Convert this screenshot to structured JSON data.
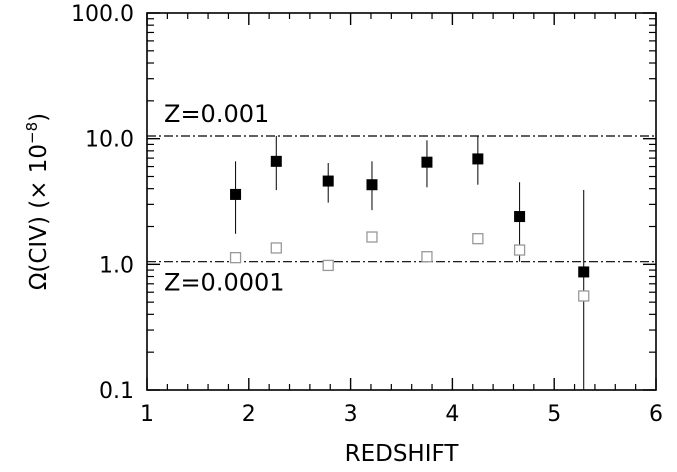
{
  "chart_data": {
    "type": "scatter",
    "xlabel": "REDSHIFT",
    "ylabel_main": "Ω(CIV)  (× 10",
    "ylabel_exp": "−8",
    "ylabel_close": ")",
    "xlim": [
      1,
      6
    ],
    "ylim": [
      0.1,
      100
    ],
    "y_scale": "log",
    "grid": false,
    "x_ticks": [
      1,
      2,
      3,
      4,
      5,
      6
    ],
    "x_tick_labels": [
      "1",
      "2",
      "3",
      "4",
      "5",
      "6"
    ],
    "y_ticks": [
      0.1,
      1,
      10,
      100
    ],
    "y_tick_labels": [
      "0.1",
      "1.0",
      "10.0",
      "100.0"
    ],
    "reference_lines": [
      {
        "label": "Z=0.001",
        "y": 10.5
      },
      {
        "label": "Z=0.0001",
        "y": 1.05
      }
    ],
    "series": [
      {
        "marker": "filled-square",
        "color": "#000000",
        "points": [
          {
            "x": 1.87,
            "y": 3.6,
            "err_low": 1.75,
            "err_high": 6.6
          },
          {
            "x": 2.27,
            "y": 6.6,
            "err_low": 3.9,
            "err_high": 10.5
          },
          {
            "x": 2.78,
            "y": 4.6,
            "err_low": 3.1,
            "err_high": 6.4
          },
          {
            "x": 3.21,
            "y": 4.3,
            "err_low": 2.7,
            "err_high": 6.6
          },
          {
            "x": 3.75,
            "y": 6.5,
            "err_low": 4.1,
            "err_high": 9.7
          },
          {
            "x": 4.25,
            "y": 6.9,
            "err_low": 4.3,
            "err_high": 10.5
          },
          {
            "x": 4.66,
            "y": 2.4,
            "err_low": 1.05,
            "err_high": 4.5
          },
          {
            "x": 5.29,
            "y": 0.87,
            "err_low": 0.1,
            "err_high": 3.9
          }
        ]
      },
      {
        "marker": "open-square",
        "color": "#999999",
        "points": [
          {
            "x": 1.87,
            "y": 1.13
          },
          {
            "x": 2.27,
            "y": 1.35
          },
          {
            "x": 2.78,
            "y": 0.98
          },
          {
            "x": 3.21,
            "y": 1.65
          },
          {
            "x": 3.75,
            "y": 1.15
          },
          {
            "x": 4.25,
            "y": 1.6
          },
          {
            "x": 4.66,
            "y": 1.3
          },
          {
            "x": 5.29,
            "y": 0.56
          }
        ]
      }
    ]
  }
}
